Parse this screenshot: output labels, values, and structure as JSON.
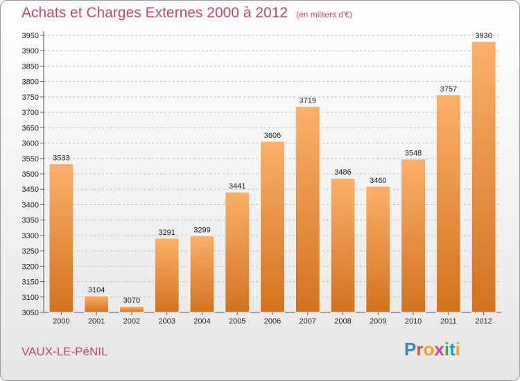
{
  "header": {
    "title": "Achats et Charges Externes 2000 à 2012",
    "unit": "(en milliers d'€)"
  },
  "footer": {
    "town": "VAUX-LE-PéNIL",
    "logo": [
      "P",
      "r",
      "o",
      "x",
      "i",
      "t",
      "i"
    ],
    "logo_colors": [
      "#3a7fc8",
      "#e84d3a",
      "#f2a31b",
      "#e83c8c",
      "#3aa84a",
      "#2b8fd6",
      "#e8a91b"
    ]
  },
  "colors": {
    "bar_light": "#fbb06a",
    "bar_dark": "#d3721f",
    "title": "#c5485e"
  },
  "chart_data": {
    "type": "bar",
    "title": "Achats et Charges Externes 2000 à 2012",
    "subtitle": "(en milliers d'€)",
    "categories": [
      "2000",
      "2001",
      "2002",
      "2003",
      "2004",
      "2005",
      "2006",
      "2007",
      "2008",
      "2009",
      "2010",
      "2011",
      "2012"
    ],
    "values": [
      3533,
      3104,
      3070,
      3291,
      3299,
      3441,
      3606,
      3719,
      3486,
      3460,
      3548,
      3757,
      3930
    ],
    "ylim": [
      3050,
      3950
    ],
    "yticks": [
      3050,
      3100,
      3150,
      3200,
      3250,
      3300,
      3350,
      3400,
      3450,
      3500,
      3550,
      3600,
      3650,
      3700,
      3750,
      3800,
      3850,
      3900,
      3950
    ],
    "grid": true,
    "xlabel": "",
    "ylabel": ""
  }
}
